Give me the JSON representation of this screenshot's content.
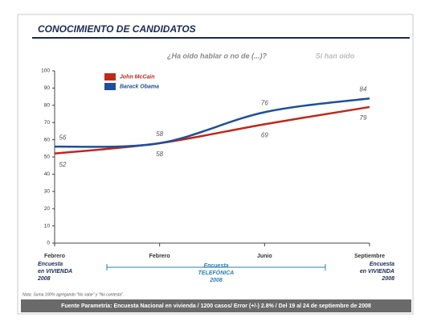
{
  "chart_data": {
    "type": "line",
    "title": "CONOCIMIENTO DE CANDIDATOS",
    "subtitle": "¿Ha oído hablar o no de (...)?",
    "y_label": "Sí han oído",
    "categories": [
      "Febrero",
      "Febrero",
      "Junio",
      "Septiembre"
    ],
    "series": [
      {
        "name": "John McCain",
        "color": "#c0281c",
        "values": [
          52,
          58,
          69,
          79
        ]
      },
      {
        "name": "Barack Obama",
        "color": "#1f4f9c",
        "values": [
          56,
          58,
          76,
          84
        ]
      }
    ],
    "ylim": [
      0,
      100
    ],
    "yticks": [
      0,
      10,
      20,
      30,
      40,
      50,
      60,
      70,
      80,
      90,
      100
    ],
    "survey_labels": [
      {
        "lines": [
          "Encuesta",
          "en VIVIENDA",
          "2008"
        ]
      },
      {
        "lines": [
          "Encuesta",
          "TELEFÓNICA",
          "2008"
        ]
      },
      {
        "lines": [
          "Encuesta",
          "en VIVIENDA",
          "2008"
        ]
      }
    ],
    "note": "Nota: Suma 100% agregando \"No sabe\" y \"No contesta\".",
    "source": "Fuente Parametría: Encuesta Nacional en vivienda / 1200 casos/ Error (+/-) 2.8% / Del 19 al 24 de septiembre de 2008"
  }
}
